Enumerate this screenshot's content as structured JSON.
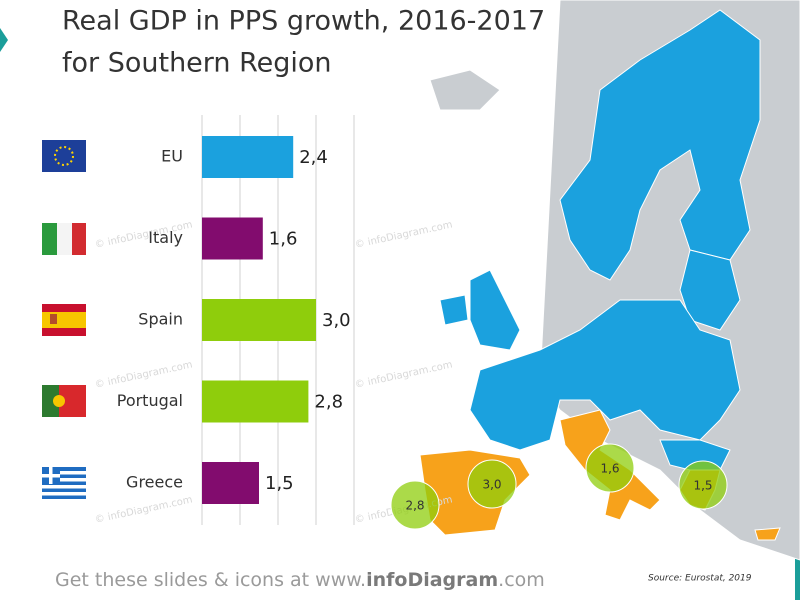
{
  "chart_data": {
    "type": "bar",
    "orientation": "horizontal",
    "title": [
      "Real GDP in PPS growth, 2016-2017",
      "for Southern Region"
    ],
    "categories": [
      "EU",
      "Italy",
      "Spain",
      "Portugal",
      "Greece"
    ],
    "values": [
      2.4,
      1.6,
      3.0,
      2.8,
      1.5
    ],
    "value_labels": [
      "2,4",
      "1,6",
      "3,0",
      "2,8",
      "1,5"
    ],
    "colors": [
      "#1ba1de",
      "#820c6e",
      "#8fcd0c",
      "#8fcd0c",
      "#820c6e"
    ],
    "xlim": [
      0,
      4
    ],
    "xticks": [
      0,
      1,
      2,
      3,
      4
    ],
    "grid": true
  },
  "watermark": "© infoDiagram.com",
  "footer": {
    "prefix": "Get these slides & icons at www.",
    "brand": "infoDiagram",
    "suffix": ".com"
  },
  "source": "Source: Eurostat, 2019"
}
